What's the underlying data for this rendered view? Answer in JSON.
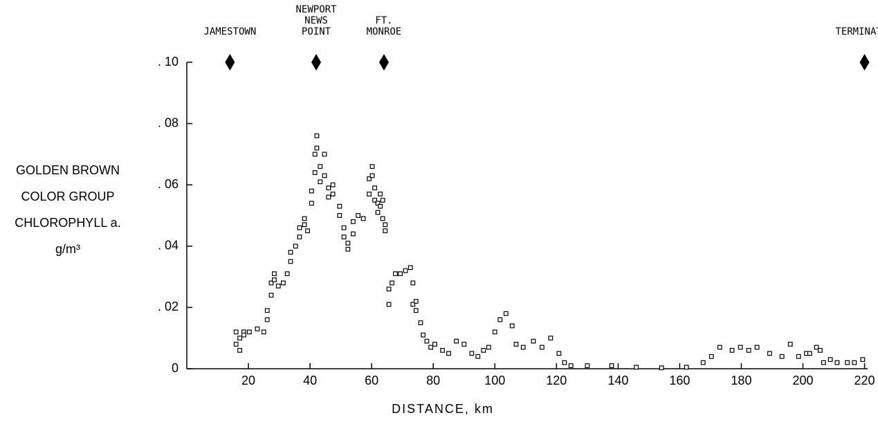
{
  "chart_data": {
    "type": "scatter",
    "x_label": "DISTANCE, km",
    "y_label": [
      "GOLDEN BROWN",
      "COLOR GROUP",
      "CHLOROPHYLL a.",
      "g/m³"
    ],
    "xlim": [
      0,
      221
    ],
    "ylim": [
      0,
      0.1
    ],
    "xticks": [
      20,
      40,
      60,
      80,
      100,
      120,
      140,
      160,
      180,
      200,
      220
    ],
    "yticks": [
      0,
      {
        "value": 0.02,
        "label": ". 02"
      },
      {
        "value": 0.04,
        "label": ". 04"
      },
      {
        "value": 0.06,
        "label": ". 06"
      },
      {
        "value": 0.08,
        "label": ". 08"
      },
      {
        "value": 0.1,
        "label": ". 10"
      }
    ],
    "markers": [
      {
        "label": [
          "JAMESTOWN"
        ],
        "x": 14
      },
      {
        "label": [
          "NEWPORT",
          "NEWS",
          "POINT"
        ],
        "x": 42
      },
      {
        "label": [
          "FT.",
          "MONROE"
        ],
        "x": 64
      },
      {
        "label": [
          "TERMINATOR"
        ],
        "x": 220
      }
    ],
    "color": "#000000",
    "x": [
      16,
      16,
      17.2,
      17.2,
      18.5,
      18.5,
      20.3,
      22.9,
      25.0,
      26.1,
      26.1,
      27.4,
      27.4,
      28.4,
      28.4,
      29.7,
      31.3,
      32.6,
      33.7,
      33.7,
      35.3,
      36.6,
      36.6,
      38.2,
      38.2,
      39.2,
      40.5,
      40.5,
      41.6,
      41.6,
      42.2,
      42.2,
      43.3,
      43.3,
      44.7,
      44.7,
      46.0,
      46.0,
      47.4,
      47.4,
      49.6,
      49.6,
      51.0,
      51.0,
      52.3,
      52.3,
      54.0,
      54.0,
      55.6,
      57.3,
      59.2,
      59.2,
      60.2,
      60.2,
      61.0,
      61.0,
      62.0,
      62.0,
      62.8,
      62.8,
      63.6,
      63.6,
      64.4,
      64.4,
      65.6,
      65.6,
      66.6,
      67.7,
      69.3,
      71.0,
      72.6,
      73.4,
      73.4,
      74.4,
      74.4,
      75.9,
      76.7,
      77.9,
      79.2,
      80.5,
      83.0,
      85.0,
      87.5,
      90.0,
      92.5,
      94.5,
      96.3,
      98.0,
      100,
      101.7,
      103.6,
      105.6,
      106.9,
      109.2,
      112.5,
      115.3,
      118.1,
      120.8,
      122.6,
      124.7,
      130.0,
      137.9,
      145.9,
      154.1,
      162.2,
      167.6,
      170.3,
      173.0,
      177.0,
      179.7,
      182.4,
      185.1,
      189.2,
      193.2,
      195.9,
      198.6,
      201.1,
      202.2,
      204.4,
      205.6,
      206.7,
      208.9,
      211.1,
      214.4,
      216.7,
      219.4
    ],
    "values": [
      0.012,
      0.008,
      0.006,
      0.01,
      0.012,
      0.011,
      0.012,
      0.013,
      0.012,
      0.016,
      0.019,
      0.024,
      0.028,
      0.031,
      0.029,
      0.027,
      0.028,
      0.031,
      0.035,
      0.038,
      0.04,
      0.043,
      0.046,
      0.049,
      0.047,
      0.045,
      0.054,
      0.058,
      0.064,
      0.07,
      0.076,
      0.072,
      0.066,
      0.061,
      0.07,
      0.063,
      0.059,
      0.056,
      0.06,
      0.057,
      0.053,
      0.05,
      0.046,
      0.043,
      0.039,
      0.041,
      0.044,
      0.048,
      0.05,
      0.049,
      0.057,
      0.062,
      0.066,
      0.063,
      0.059,
      0.055,
      0.054,
      0.051,
      0.053,
      0.057,
      0.055,
      0.049,
      0.047,
      0.045,
      0.021,
      0.026,
      0.028,
      0.031,
      0.031,
      0.032,
      0.033,
      0.028,
      0.021,
      0.019,
      0.022,
      0.015,
      0.011,
      0.009,
      0.007,
      0.008,
      0.006,
      0.005,
      0.009,
      0.008,
      0.005,
      0.004,
      0.006,
      0.007,
      0.012,
      0.016,
      0.018,
      0.014,
      0.008,
      0.007,
      0.009,
      0.007,
      0.01,
      0.005,
      0.002,
      0.001,
      0.001,
      0.001,
      0.0005,
      0.0003,
      0.0005,
      0.002,
      0.004,
      0.007,
      0.006,
      0.007,
      0.006,
      0.007,
      0.005,
      0.004,
      0.008,
      0.004,
      0.005,
      0.005,
      0.007,
      0.006,
      0.002,
      0.003,
      0.002,
      0.002,
      0.002,
      0.003
    ]
  }
}
